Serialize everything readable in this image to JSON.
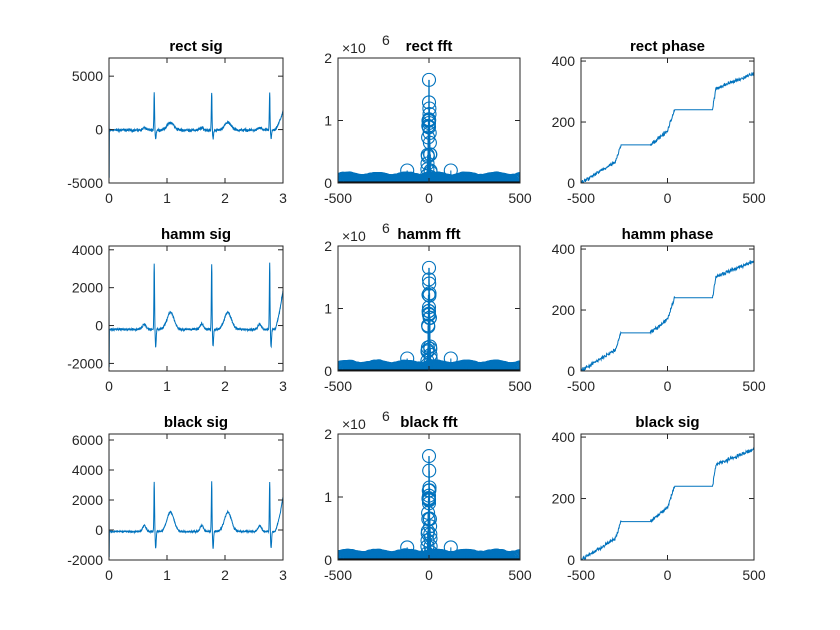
{
  "figure": {
    "background": "#ffffff",
    "line_color": "#0072bd",
    "axis_color": "#262626"
  },
  "chart_data": [
    {
      "id": "rect-sig",
      "type": "line",
      "title": "rect sig",
      "xlabel": "",
      "ylabel": "",
      "xlim": [
        0,
        3
      ],
      "ylim": [
        -5000,
        6700
      ],
      "xticks": [
        0,
        1,
        2,
        3
      ],
      "xtick_labels": [
        "0",
        "1",
        "2",
        "3"
      ],
      "yticks": [
        -5000,
        0,
        5000
      ],
      "ytick_labels": [
        "-5000",
        "0",
        "5000"
      ],
      "signal": {
        "kind": "ecg",
        "baseline": -50,
        "noise": 200,
        "r_peaks": [
          0.78,
          1.77,
          2.77
        ],
        "r_height": 3600,
        "r_dip": -800,
        "t_height": 700,
        "start_spike": [
          6200,
          -4500
        ],
        "end_value": 1200
      }
    },
    {
      "id": "rect-fft",
      "type": "stem",
      "title": "rect fft",
      "xlabel": "",
      "ylabel": "",
      "xlim": [
        -500,
        500
      ],
      "ylim": [
        0,
        2000000
      ],
      "exponent_label": "×10",
      "exponent": "6",
      "xticks": [
        -500,
        0,
        500
      ],
      "xtick_labels": [
        "-500",
        "0",
        "500"
      ],
      "yticks": [
        0,
        1000000,
        2000000
      ],
      "ytick_labels": [
        "0",
        "1",
        "2"
      ],
      "spectrum": {
        "peak": 1650000,
        "outliers": [
          [
            -120,
            200000
          ],
          [
            120,
            200000
          ],
          [
            0,
            1020000
          ],
          [
            0,
            960000
          ],
          [
            0,
            900000
          ]
        ]
      }
    },
    {
      "id": "rect-phase",
      "type": "line",
      "title": "rect phase",
      "xlabel": "",
      "ylabel": "",
      "xlim": [
        -500,
        500
      ],
      "ylim": [
        0,
        410
      ],
      "xticks": [
        -500,
        0,
        500
      ],
      "xtick_labels": [
        "-500",
        "0",
        "500"
      ],
      "yticks": [
        0,
        200,
        400
      ],
      "ytick_labels": [
        "0",
        "200",
        "400"
      ],
      "phase": {
        "steps": [
          [
            -500,
            0
          ],
          [
            -300,
            70
          ],
          [
            -270,
            125
          ],
          [
            -100,
            125
          ],
          [
            0,
            170
          ],
          [
            40,
            240
          ],
          [
            260,
            240
          ],
          [
            280,
            310
          ],
          [
            500,
            360
          ]
        ]
      }
    },
    {
      "id": "hamm-sig",
      "type": "line",
      "title": "hamm sig",
      "xlabel": "",
      "ylabel": "",
      "xlim": [
        0,
        3
      ],
      "ylim": [
        -2400,
        4200
      ],
      "xticks": [
        0,
        1,
        2,
        3
      ],
      "xtick_labels": [
        "0",
        "1",
        "2",
        "3"
      ],
      "yticks": [
        -2000,
        0,
        2000,
        4000
      ],
      "ytick_labels": [
        "-2000",
        "0",
        "2000",
        "4000"
      ],
      "signal": {
        "kind": "ecg",
        "baseline": -200,
        "noise": 90,
        "r_peaks": [
          0.78,
          1.77,
          2.77
        ],
        "r_height": 3500,
        "r_dip": -900,
        "t_height": 900,
        "start_spike": [
          2000,
          -2200
        ],
        "end_value": 1200
      }
    },
    {
      "id": "hamm-fft",
      "type": "stem",
      "title": "hamm fft",
      "xlabel": "",
      "ylabel": "",
      "xlim": [
        -500,
        500
      ],
      "ylim": [
        0,
        2000000
      ],
      "exponent_label": "×10",
      "exponent": "6",
      "xticks": [
        -500,
        0,
        500
      ],
      "xtick_labels": [
        "-500",
        "0",
        "500"
      ],
      "yticks": [
        0,
        1000000,
        2000000
      ],
      "ytick_labels": [
        "0",
        "1",
        "2"
      ],
      "spectrum": {
        "peak": 1650000,
        "outliers": [
          [
            -120,
            200000
          ],
          [
            120,
            200000
          ],
          [
            0,
            1020000
          ],
          [
            0,
            960000
          ],
          [
            0,
            900000
          ]
        ]
      }
    },
    {
      "id": "hamm-phase",
      "type": "line",
      "title": "hamm phase",
      "xlabel": "",
      "ylabel": "",
      "xlim": [
        -500,
        500
      ],
      "ylim": [
        0,
        410
      ],
      "xticks": [
        -500,
        0,
        500
      ],
      "xtick_labels": [
        "-500",
        "0",
        "500"
      ],
      "yticks": [
        0,
        200,
        400
      ],
      "ytick_labels": [
        "0",
        "200",
        "400"
      ],
      "phase": {
        "steps": [
          [
            -500,
            0
          ],
          [
            -300,
            70
          ],
          [
            -270,
            125
          ],
          [
            -100,
            125
          ],
          [
            0,
            170
          ],
          [
            40,
            240
          ],
          [
            260,
            240
          ],
          [
            280,
            310
          ],
          [
            500,
            360
          ]
        ]
      }
    },
    {
      "id": "black-sig",
      "type": "line",
      "title": "black sig",
      "xlabel": "",
      "ylabel": "",
      "xlim": [
        0,
        3
      ],
      "ylim": [
        -2000,
        6400
      ],
      "xticks": [
        0,
        1,
        2,
        3
      ],
      "xtick_labels": [
        "0",
        "1",
        "2",
        "3"
      ],
      "yticks": [
        -2000,
        0,
        2000,
        4000,
        6000
      ],
      "ytick_labels": [
        "-2000",
        "0",
        "2000",
        "4000",
        "6000"
      ],
      "signal": {
        "kind": "ecg",
        "baseline": -100,
        "noise": 90,
        "r_peaks": [
          0.78,
          1.77,
          2.77
        ],
        "r_height": 3300,
        "r_dip": -1100,
        "t_height": 1300,
        "start_spike": [
          6000,
          -1800
        ],
        "end_value": 1300
      }
    },
    {
      "id": "black-fft",
      "type": "stem",
      "title": "black fft",
      "xlabel": "",
      "ylabel": "",
      "xlim": [
        -500,
        500
      ],
      "ylim": [
        0,
        2000000
      ],
      "exponent_label": "×10",
      "exponent": "6",
      "xticks": [
        -500,
        0,
        500
      ],
      "xtick_labels": [
        "-500",
        "0",
        "500"
      ],
      "yticks": [
        0,
        1000000,
        2000000
      ],
      "ytick_labels": [
        "0",
        "1",
        "2"
      ],
      "spectrum": {
        "peak": 1650000,
        "outliers": [
          [
            -120,
            200000
          ],
          [
            120,
            200000
          ],
          [
            0,
            1020000
          ],
          [
            0,
            960000
          ],
          [
            0,
            900000
          ]
        ]
      }
    },
    {
      "id": "black-phase",
      "type": "line",
      "title": "black sig",
      "xlabel": "",
      "ylabel": "",
      "xlim": [
        -500,
        500
      ],
      "ylim": [
        0,
        410
      ],
      "xticks": [
        -500,
        0,
        500
      ],
      "xtick_labels": [
        "-500",
        "0",
        "500"
      ],
      "yticks": [
        0,
        200,
        400
      ],
      "ytick_labels": [
        "0",
        "200",
        "400"
      ],
      "phase": {
        "steps": [
          [
            -500,
            0
          ],
          [
            -300,
            70
          ],
          [
            -270,
            125
          ],
          [
            -100,
            125
          ],
          [
            0,
            170
          ],
          [
            40,
            240
          ],
          [
            260,
            240
          ],
          [
            280,
            310
          ],
          [
            500,
            360
          ]
        ]
      }
    }
  ]
}
